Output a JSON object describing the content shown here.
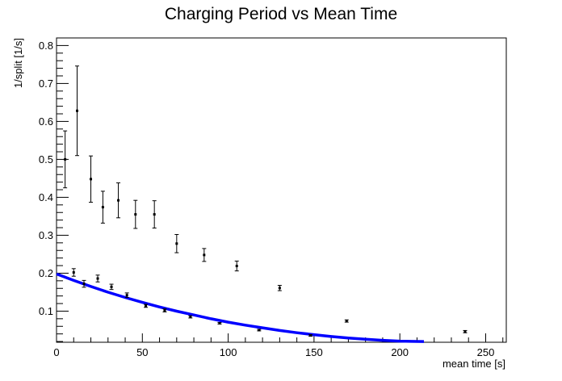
{
  "chart_data": {
    "type": "scatter",
    "title": "Charging Period vs Mean Time",
    "xlabel": "mean time [s]",
    "ylabel": "1/split [1/s]",
    "xlim": [
      0,
      262
    ],
    "ylim": [
      0.018,
      0.82
    ],
    "grid": false,
    "x_ticks": [
      0,
      50,
      100,
      150,
      200,
      250
    ],
    "y_ticks": [
      0.1,
      0.2,
      0.3,
      0.4,
      0.5,
      0.6,
      0.7,
      0.8
    ],
    "x_tick_labels": [
      "0",
      "50",
      "100",
      "150",
      "200",
      "250"
    ],
    "y_tick_labels": [
      "0.1",
      "0.2",
      "0.3",
      "0.4",
      "0.5",
      "0.6",
      "0.7",
      "0.8"
    ],
    "series": [
      {
        "color": "#000000",
        "marker": "point-with-error-bars",
        "points": [
          {
            "x": 5,
            "y": 0.5,
            "err": 0.075
          },
          {
            "x": 12,
            "y": 0.628,
            "err": 0.118
          },
          {
            "x": 20,
            "y": 0.448,
            "err": 0.061
          },
          {
            "x": 27,
            "y": 0.374,
            "err": 0.042
          },
          {
            "x": 36,
            "y": 0.392,
            "err": 0.046
          },
          {
            "x": 46,
            "y": 0.355,
            "err": 0.037
          },
          {
            "x": 57,
            "y": 0.355,
            "err": 0.036
          },
          {
            "x": 70,
            "y": 0.278,
            "err": 0.024
          },
          {
            "x": 86,
            "y": 0.248,
            "err": 0.017
          },
          {
            "x": 105,
            "y": 0.219,
            "err": 0.013
          },
          {
            "x": 130,
            "y": 0.161,
            "err": 0.007
          },
          {
            "x": 169,
            "y": 0.074,
            "err": 0.003
          },
          {
            "x": 238,
            "y": 0.046,
            "err": 0.003
          }
        ]
      },
      {
        "color": "#000000",
        "marker": "point-with-error-bars",
        "points": [
          {
            "x": 10,
            "y": 0.202,
            "err": 0.01
          },
          {
            "x": 16,
            "y": 0.172,
            "err": 0.009
          },
          {
            "x": 24,
            "y": 0.186,
            "err": 0.009
          },
          {
            "x": 32,
            "y": 0.164,
            "err": 0.007
          },
          {
            "x": 41,
            "y": 0.142,
            "err": 0.006
          },
          {
            "x": 52,
            "y": 0.114,
            "err": 0.004
          },
          {
            "x": 63,
            "y": 0.102,
            "err": 0.004
          },
          {
            "x": 78,
            "y": 0.085,
            "err": 0.003
          },
          {
            "x": 95,
            "y": 0.068,
            "err": 0.002
          },
          {
            "x": 118,
            "y": 0.05,
            "err": 0.002
          },
          {
            "x": 148,
            "y": 0.036,
            "err": 0.002
          }
        ]
      },
      {
        "color": "#0000ff",
        "style": "thick-line",
        "x": [
          0,
          10,
          20,
          30,
          40,
          50,
          60,
          70,
          80,
          90,
          100,
          110,
          120,
          130,
          140,
          150,
          160,
          170,
          180,
          190,
          200,
          214
        ],
        "y": [
          0.198,
          0.181,
          0.165,
          0.15,
          0.136,
          0.123,
          0.111,
          0.1,
          0.09,
          0.08,
          0.071,
          0.063,
          0.056,
          0.049,
          0.043,
          0.038,
          0.033,
          0.029,
          0.026,
          0.023,
          0.021,
          0.02
        ]
      }
    ]
  }
}
